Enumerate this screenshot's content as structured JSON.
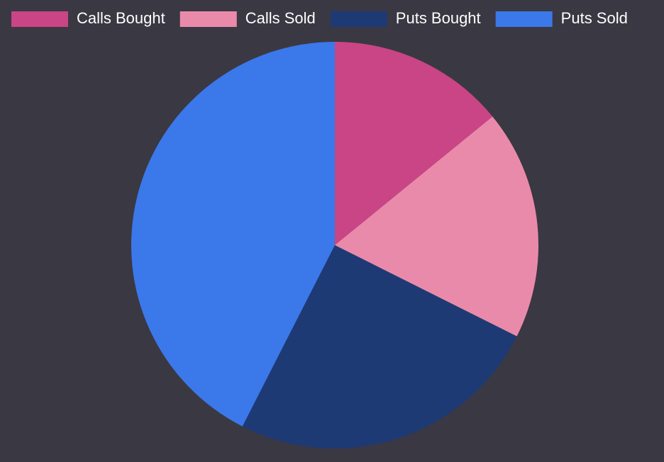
{
  "chart_data": {
    "type": "pie",
    "categories": [
      "Calls Bought",
      "Calls Sold",
      "Puts Bought",
      "Puts Sold"
    ],
    "values": [
      14.1,
      18.3,
      25.1,
      42.5
    ],
    "colors": [
      "#c94585",
      "#ea8aab",
      "#1e3a75",
      "#3b78ea"
    ],
    "legend": "top"
  }
}
